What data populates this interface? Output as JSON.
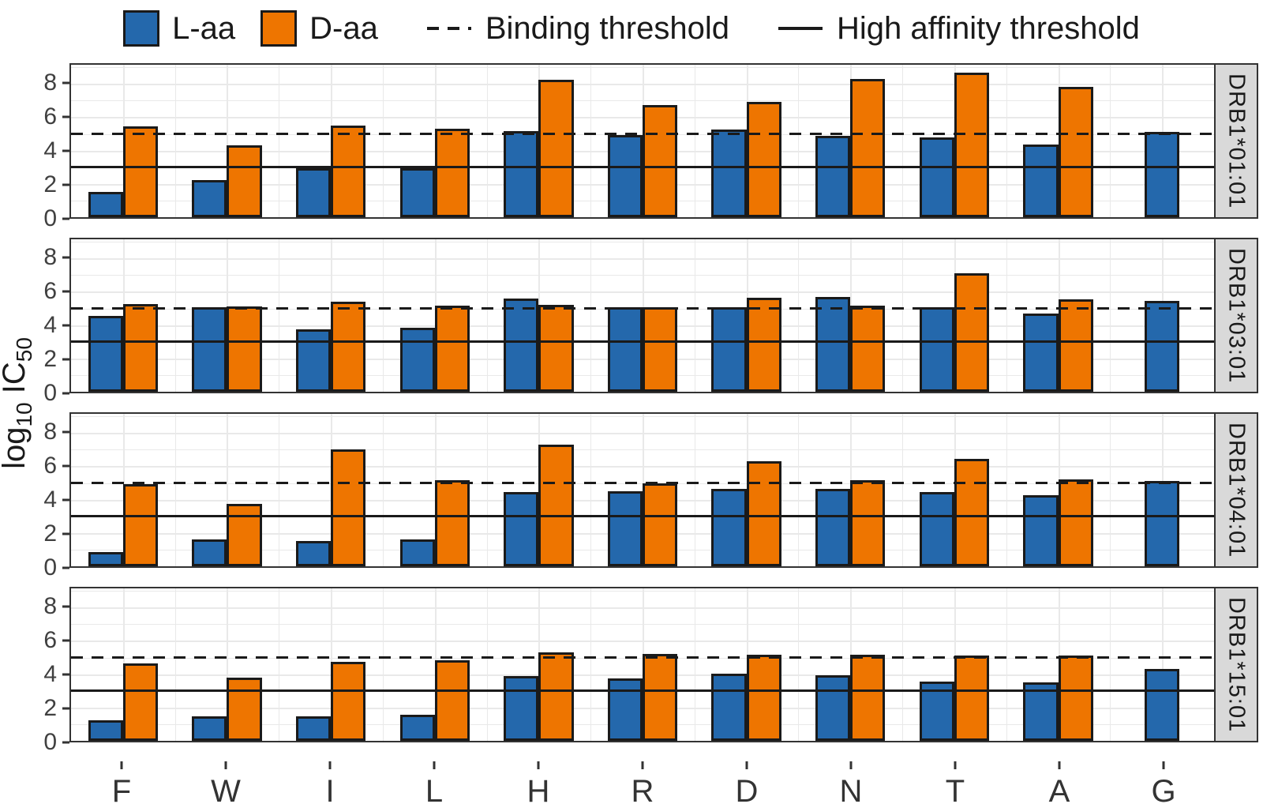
{
  "legend": {
    "series": [
      {
        "label": "L-aa"
      },
      {
        "label": "D-aa"
      }
    ],
    "threshold_lines": [
      {
        "label": "Binding threshold",
        "style": "dashed"
      },
      {
        "label": "High affinity threshold",
        "style": "solid"
      }
    ]
  },
  "y_axis": {
    "label_base": "log",
    "label_sub1": "10",
    "label_mid": " IC",
    "label_sub2": "50",
    "ticks": [
      0,
      2,
      4,
      6,
      8
    ]
  },
  "chart_data": {
    "type": "bar",
    "categories": [
      "F",
      "W",
      "I",
      "L",
      "H",
      "R",
      "D",
      "N",
      "T",
      "A",
      "G"
    ],
    "ylabel": "log10 IC50",
    "ylim": [
      0,
      9.15
    ],
    "yticks": [
      0,
      2,
      4,
      6,
      8
    ],
    "grid": true,
    "legend_position": "top",
    "thresholds": [
      {
        "name": "Binding threshold",
        "value": 5,
        "style": "dashed"
      },
      {
        "name": "High affinity threshold",
        "value": 3,
        "style": "solid"
      }
    ],
    "facets": [
      {
        "label": "DRB1*01:01",
        "series": [
          {
            "name": "L-aa",
            "values": [
              1.5,
              2.25,
              2.95,
              2.95,
              5.15,
              4.95,
              5.25,
              4.9,
              4.8,
              4.35,
              5.1
            ]
          },
          {
            "name": "D-aa",
            "values": [
              5.45,
              4.3,
              5.5,
              5.3,
              8.25,
              6.75,
              6.9,
              8.3,
              8.7,
              7.8,
              null
            ]
          }
        ]
      },
      {
        "label": "DRB1*03:01",
        "series": [
          {
            "name": "L-aa",
            "values": [
              4.55,
              5.05,
              3.75,
              3.85,
              5.6,
              5.05,
              5.05,
              5.7,
              5.05,
              4.7,
              5.45
            ]
          },
          {
            "name": "D-aa",
            "values": [
              5.25,
              5.1,
              5.4,
              5.15,
              5.2,
              5.05,
              5.65,
              5.15,
              7.1,
              5.55,
              null
            ]
          }
        ]
      },
      {
        "label": "DRB1*04:01",
        "series": [
          {
            "name": "L-aa",
            "values": [
              0.85,
              1.6,
              1.5,
              1.6,
              4.45,
              4.5,
              4.65,
              4.65,
              4.45,
              4.25,
              5.1
            ]
          },
          {
            "name": "D-aa",
            "values": [
              4.95,
              3.75,
              7.0,
              5.15,
              7.3,
              5.0,
              6.3,
              5.15,
              6.45,
              5.2,
              null
            ]
          }
        ]
      },
      {
        "label": "DRB1*15:01",
        "series": [
          {
            "name": "L-aa",
            "values": [
              1.25,
              1.45,
              1.45,
              1.55,
              3.9,
              3.75,
              4.05,
              3.95,
              3.55,
              3.5,
              4.3
            ]
          },
          {
            "name": "D-aa",
            "values": [
              4.65,
              3.8,
              4.75,
              4.85,
              5.3,
              5.2,
              5.15,
              5.15,
              5.1,
              5.1,
              null
            ]
          }
        ]
      }
    ]
  },
  "colors": {
    "l_aa": "#2468AC",
    "d_aa": "#EE7500",
    "bar_border": "#1A1A1A",
    "grid": "#E9E9E9",
    "strip_bg": "#D9D9D9",
    "panel_border": "#333333",
    "axis_text": "#333333",
    "threshold": "#1A1A1A"
  }
}
